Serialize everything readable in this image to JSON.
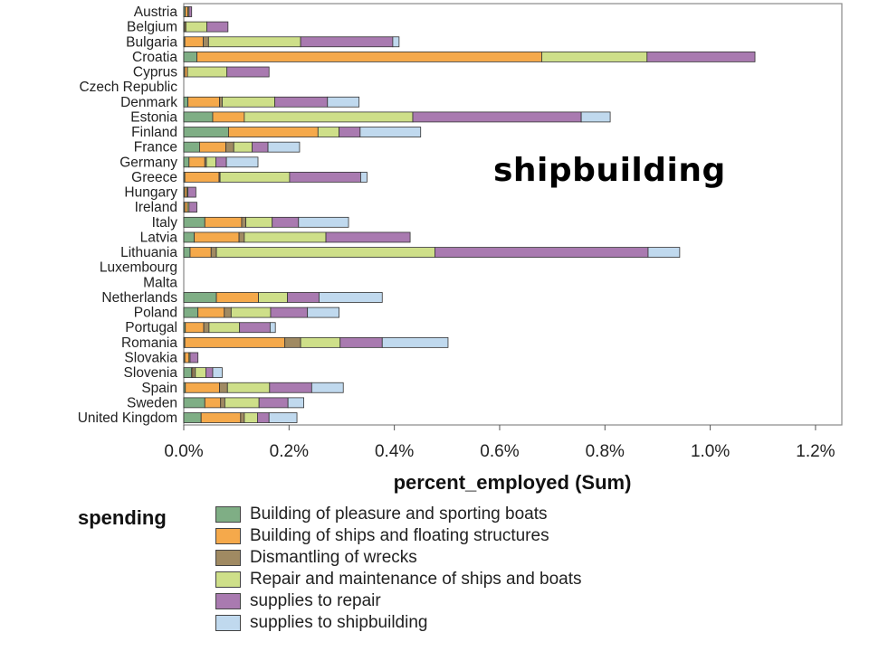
{
  "overlay_text": "shipbuilding",
  "chart_data": {
    "type": "bar",
    "orientation": "horizontal",
    "stacked": true,
    "title": "",
    "xlabel": "percent_employed (Sum)",
    "ylabel": "",
    "xlim": [
      0,
      1.25
    ],
    "x_ticks": [
      "0.0%",
      "0.2%",
      "0.4%",
      "0.6%",
      "0.8%",
      "1.0%",
      "1.2%"
    ],
    "legend_title": "spending",
    "legend_position": "bottom",
    "grid": false,
    "categories": [
      "Austria",
      "Belgium",
      "Bulgaria",
      "Croatia",
      "Cyprus",
      "Czech Republic",
      "Denmark",
      "Estonia",
      "Finland",
      "France",
      "Germany",
      "Greece",
      "Hungary",
      "Ireland",
      "Italy",
      "Latvia",
      "Lithuania",
      "Luxembourg",
      "Malta",
      "Netherlands",
      "Poland",
      "Portugal",
      "Romania",
      "Slovakia",
      "Slovenia",
      "Spain",
      "Sweden",
      "United Kingdom"
    ],
    "series": [
      {
        "name": "Building of pleasure and sporting boats",
        "color": "#7fae85",
        "values": [
          0.003,
          0.002,
          0.002,
          0.025,
          0.002,
          0,
          0.008,
          0.055,
          0.085,
          0.03,
          0.01,
          0.002,
          0.002,
          0.002,
          0.04,
          0.02,
          0.012,
          0,
          0,
          0.062,
          0.027,
          0.003,
          0.002,
          0.002,
          0.015,
          0.003,
          0.04,
          0.033
        ]
      },
      {
        "name": "Building of ships and floating structures",
        "color": "#f5a94b",
        "values": [
          0.005,
          0.002,
          0.035,
          0.655,
          0.005,
          0,
          0.06,
          0.06,
          0.17,
          0.05,
          0.03,
          0.065,
          0.004,
          0.005,
          0.07,
          0.085,
          0.04,
          0,
          0,
          0.08,
          0.05,
          0.035,
          0.19,
          0.008,
          0.002,
          0.065,
          0.03,
          0.075
        ]
      },
      {
        "name": "Dismantling of wrecks",
        "color": "#a08a62",
        "values": [
          0,
          0,
          0.01,
          0,
          0,
          0,
          0.005,
          0,
          0,
          0.015,
          0.003,
          0.002,
          0,
          0,
          0.008,
          0.01,
          0.01,
          0,
          0,
          0,
          0.013,
          0.01,
          0.03,
          0,
          0.005,
          0.015,
          0.008,
          0.007
        ]
      },
      {
        "name": "Repair and maintenance of ships and boats",
        "color": "#cedf89",
        "values": [
          0.002,
          0.04,
          0.175,
          0.2,
          0.075,
          0,
          0.1,
          0.32,
          0.04,
          0.035,
          0.018,
          0.132,
          0.002,
          0.003,
          0.05,
          0.155,
          0.415,
          0,
          0,
          0.055,
          0.075,
          0.058,
          0.075,
          0.002,
          0.02,
          0.08,
          0.065,
          0.025
        ]
      },
      {
        "name": "supplies to repair",
        "color": "#a97ab0",
        "values": [
          0.005,
          0.04,
          0.175,
          0.205,
          0.08,
          0,
          0.1,
          0.32,
          0.04,
          0.03,
          0.02,
          0.135,
          0.015,
          0.015,
          0.05,
          0.16,
          0.405,
          0,
          0,
          0.06,
          0.07,
          0.058,
          0.08,
          0.015,
          0.013,
          0.08,
          0.055,
          0.022
        ]
      },
      {
        "name": "supplies to shipbuilding",
        "color": "#c0d9ee",
        "values": [
          0,
          0,
          0.012,
          0,
          0,
          0,
          0.06,
          0.055,
          0.115,
          0.06,
          0.06,
          0.012,
          0,
          0,
          0.095,
          0,
          0.06,
          0,
          0,
          0.12,
          0.06,
          0.01,
          0.125,
          0,
          0.018,
          0.06,
          0.03,
          0.053
        ]
      }
    ]
  }
}
